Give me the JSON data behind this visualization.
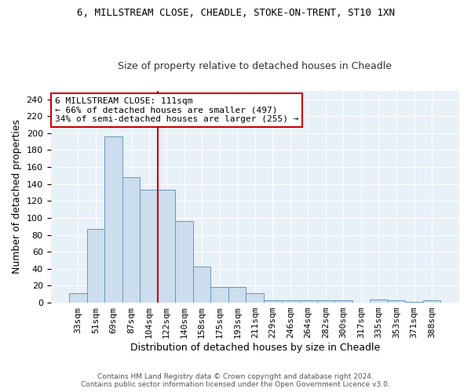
{
  "title1": "6, MILLSTREAM CLOSE, CHEADLE, STOKE-ON-TRENT, ST10 1XN",
  "title2": "Size of property relative to detached houses in Cheadle",
  "xlabel": "Distribution of detached houses by size in Cheadle",
  "ylabel": "Number of detached properties",
  "categories": [
    "33sqm",
    "51sqm",
    "69sqm",
    "87sqm",
    "104sqm",
    "122sqm",
    "140sqm",
    "158sqm",
    "175sqm",
    "193sqm",
    "211sqm",
    "229sqm",
    "246sqm",
    "264sqm",
    "282sqm",
    "300sqm",
    "317sqm",
    "335sqm",
    "353sqm",
    "371sqm",
    "388sqm"
  ],
  "values": [
    11,
    87,
    196,
    148,
    133,
    133,
    96,
    43,
    19,
    19,
    11,
    3,
    3,
    3,
    3,
    3,
    0,
    4,
    3,
    1,
    3
  ],
  "bar_color": "#ccdded",
  "bar_edge_color": "#6699bb",
  "vline_index": 5,
  "vline_color": "#cc0000",
  "annotation_text": "6 MILLSTREAM CLOSE: 111sqm\n← 66% of detached houses are smaller (497)\n34% of semi-detached houses are larger (255) →",
  "annotation_box_color": "#ffffff",
  "annotation_box_edge": "#cc0000",
  "footnote1": "Contains HM Land Registry data © Crown copyright and database right 2024.",
  "footnote2": "Contains public sector information licensed under the Open Government Licence v3.0.",
  "ylim": [
    0,
    250
  ],
  "yticks": [
    0,
    20,
    40,
    60,
    80,
    100,
    120,
    140,
    160,
    180,
    200,
    220,
    240
  ],
  "background_color": "#e8f0f8",
  "fig_background": "#ffffff",
  "title1_fontsize": 9,
  "title2_fontsize": 9,
  "xlabel_fontsize": 9,
  "ylabel_fontsize": 9,
  "tick_fontsize": 8,
  "ann_fontsize": 8
}
